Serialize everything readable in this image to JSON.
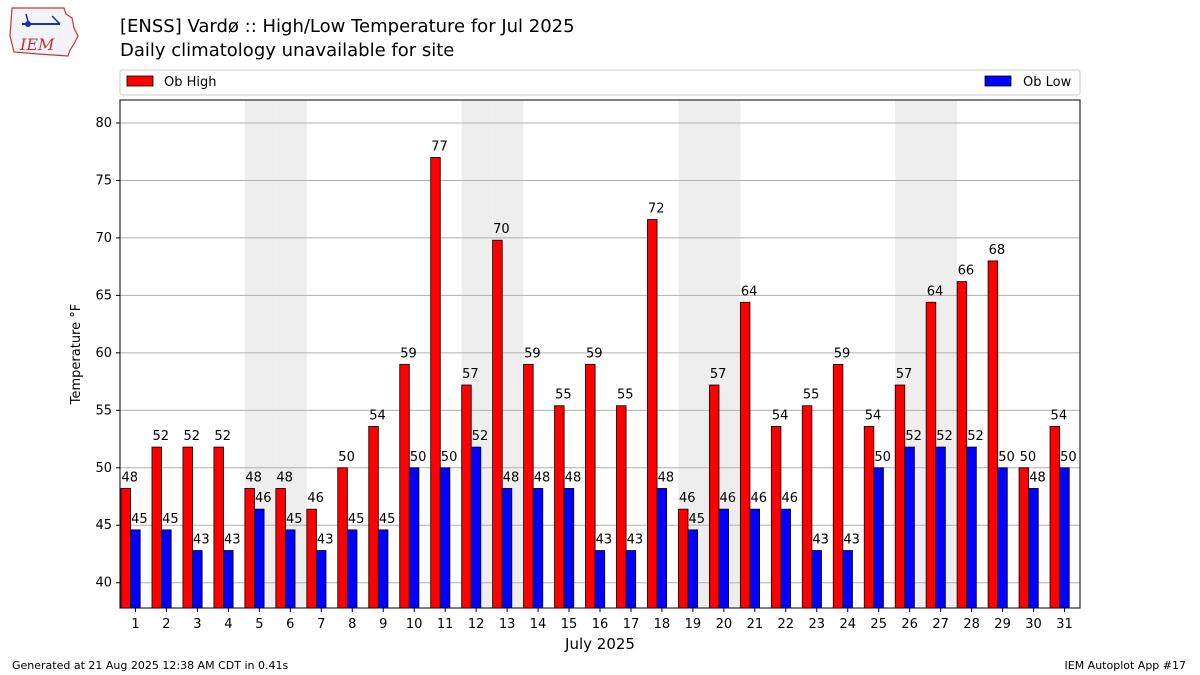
{
  "header": {
    "title": "[ENSS] Vardø :: High/Low Temperature for Jul 2025",
    "subtitle": "Daily climatology unavailable for site",
    "logo_text": "IEM"
  },
  "footer": {
    "generated": "Generated at 21 Aug 2025 12:38 AM CDT in 0.41s",
    "app": "IEM Autoplot App #17"
  },
  "chart_data": {
    "type": "bar",
    "xlabel": "July 2025",
    "ylabel": "Temperature °F",
    "ylim": [
      37.8,
      82
    ],
    "yticks": [
      40,
      45,
      50,
      55,
      60,
      65,
      70,
      75,
      80
    ],
    "grid": true,
    "legend_placement": "top, above plot",
    "weekend_shading_days": [
      5,
      6,
      12,
      13,
      19,
      20,
      26,
      27
    ],
    "categories": [
      "1",
      "2",
      "3",
      "4",
      "5",
      "6",
      "7",
      "8",
      "9",
      "10",
      "11",
      "12",
      "13",
      "14",
      "15",
      "16",
      "17",
      "18",
      "19",
      "20",
      "21",
      "22",
      "23",
      "24",
      "25",
      "26",
      "27",
      "28",
      "29",
      "30",
      "31"
    ],
    "series": [
      {
        "name": "Ob High",
        "color": "#ff0000",
        "values": [
          48.2,
          51.8,
          51.8,
          51.8,
          48.2,
          48.2,
          46.4,
          50.0,
          53.6,
          59.0,
          77.0,
          57.2,
          69.8,
          59.0,
          55.4,
          59.0,
          55.4,
          71.6,
          46.4,
          57.2,
          64.4,
          53.6,
          55.4,
          59.0,
          53.6,
          57.2,
          64.4,
          66.2,
          68.0,
          50.0,
          53.6
        ],
        "labels": [
          "48",
          "52",
          "52",
          "52",
          "48",
          "48",
          "46",
          "50",
          "54",
          "59",
          "77",
          "57",
          "70",
          "59",
          "55",
          "59",
          "55",
          "72",
          "46",
          "57",
          "64",
          "54",
          "55",
          "59",
          "54",
          "57",
          "64",
          "66",
          "68",
          "50",
          "54"
        ]
      },
      {
        "name": "Ob Low",
        "color": "#0000ff",
        "values": [
          44.6,
          44.6,
          42.8,
          42.8,
          46.4,
          44.6,
          42.8,
          44.6,
          44.6,
          50.0,
          50.0,
          51.8,
          48.2,
          48.2,
          48.2,
          42.8,
          42.8,
          48.2,
          44.6,
          46.4,
          46.4,
          46.4,
          42.8,
          42.8,
          50.0,
          51.8,
          51.8,
          51.8,
          50.0,
          48.2,
          50.0
        ],
        "labels": [
          "45",
          "45",
          "43",
          "43",
          "46",
          "45",
          "43",
          "45",
          "45",
          "50",
          "50",
          "52",
          "48",
          "48",
          "48",
          "43",
          "43",
          "48",
          "45",
          "46",
          "46",
          "46",
          "43",
          "43",
          "50",
          "52",
          "52",
          "52",
          "50",
          "48",
          "50"
        ]
      }
    ]
  }
}
